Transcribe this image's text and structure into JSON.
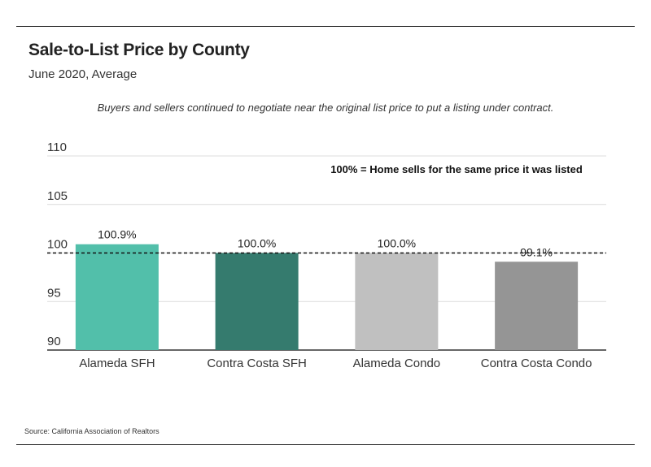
{
  "header": {
    "title": "Sale-to-List Price by County",
    "subtitle": "June 2020, Average",
    "note": "Buyers and sellers continued to negotiate near the original list price to put a listing under contract."
  },
  "footer": {
    "source": "Source:  California Association of Realtors"
  },
  "chart_data": {
    "type": "bar",
    "title": "Sale-to-List Price by County",
    "subtitle": "June 2020, Average",
    "xlabel": "",
    "ylabel": "",
    "categories": [
      "Alameda SFH",
      "Contra Costa SFH",
      "Alameda Condo",
      "Contra Costa Condo"
    ],
    "values": [
      100.9,
      100.0,
      100.0,
      99.1
    ],
    "data_labels": [
      "100.9%",
      "100.0%",
      "100.0%",
      "99.1%"
    ],
    "colors": [
      "#52bfaa",
      "#357b6e",
      "#c0c0c0",
      "#959595"
    ],
    "ylim": [
      90,
      110
    ],
    "yticks": [
      90,
      95,
      100,
      105,
      110
    ],
    "grid": true,
    "reference_line": {
      "value": 100,
      "style": "dashed",
      "label": "100% = Home sells for the same price it was listed"
    }
  }
}
